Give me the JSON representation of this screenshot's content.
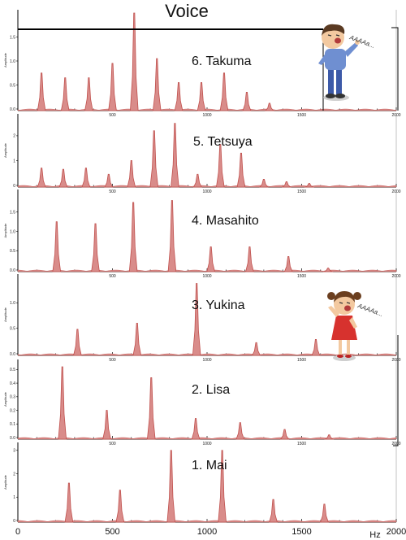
{
  "figure": {
    "title": "Voice",
    "x_unit": "Hz",
    "bottom_ticks": [
      "0",
      "500",
      "1000",
      "1500",
      "2000"
    ],
    "panel_ticks": [
      "500",
      "1000",
      "1500",
      "2000"
    ],
    "y_axis_label": "Amplitude",
    "shout_text": "AAAAa...",
    "colors": {
      "peak": "#c0504d",
      "peak_fill": "#d98c8a",
      "axis": "#000000"
    },
    "icons": [
      "boy-shouting-icon",
      "girl-shouting-icon"
    ]
  },
  "chart_data": [
    {
      "type": "line",
      "title": "6. Takuma",
      "xlabel": "",
      "ylabel": "Amplitude",
      "xlim": [
        0,
        2000
      ],
      "ylim": [
        0,
        2.0
      ],
      "yticks": [
        "0.0",
        "0.5",
        "1.0",
        "1.5"
      ],
      "series": [
        {
          "x": [
            125,
            250,
            375,
            500,
            615,
            735,
            850,
            970,
            1090,
            1210,
            1330
          ],
          "values": [
            0.75,
            0.65,
            0.65,
            0.95,
            2.0,
            1.05,
            0.55,
            0.55,
            0.75,
            0.35,
            0.12
          ]
        }
      ]
    },
    {
      "type": "line",
      "title": "5. Tetsuya",
      "xlabel": "",
      "ylabel": "Amplitude",
      "xlim": [
        0,
        2000
      ],
      "ylim": [
        0,
        2.75
      ],
      "yticks": [
        "0",
        "1",
        "2"
      ],
      "series": [
        {
          "x": [
            125,
            240,
            360,
            480,
            600,
            720,
            830,
            950,
            1070,
            1180,
            1300,
            1420,
            1540
          ],
          "values": [
            0.7,
            0.65,
            0.7,
            0.45,
            1.0,
            2.2,
            2.5,
            0.45,
            1.65,
            1.3,
            0.25,
            0.15,
            0.08
          ]
        }
      ]
    },
    {
      "type": "line",
      "title": "4. Masahito",
      "xlabel": "",
      "ylabel": "Amplitude",
      "xlim": [
        0,
        2000
      ],
      "ylim": [
        0,
        2.0
      ],
      "yticks": [
        "0.0",
        "0.5",
        "1.0",
        "1.5"
      ],
      "series": [
        {
          "x": [
            205,
            410,
            610,
            815,
            1020,
            1225,
            1430,
            1640
          ],
          "values": [
            1.25,
            1.2,
            1.75,
            1.8,
            0.6,
            0.6,
            0.35,
            0.05
          ]
        }
      ]
    },
    {
      "type": "line",
      "title": "3. Yukina",
      "xlabel": "",
      "ylabel": "Amplitude",
      "xlim": [
        0,
        2000
      ],
      "ylim": [
        0,
        1.5
      ],
      "yticks": [
        "0.0",
        "0.5",
        "1.0"
      ],
      "series": [
        {
          "x": [
            315,
            630,
            945,
            1260,
            1575
          ],
          "values": [
            0.48,
            0.6,
            1.38,
            0.22,
            0.28
          ]
        }
      ]
    },
    {
      "type": "line",
      "title": "2. Lisa",
      "xlabel": "",
      "ylabel": "Amplitude",
      "xlim": [
        0,
        2000
      ],
      "ylim": [
        0,
        0.55
      ],
      "yticks": [
        "0.0",
        "0.1",
        "0.2",
        "0.3",
        "0.4",
        "0.5"
      ],
      "series": [
        {
          "x": [
            235,
            470,
            705,
            940,
            1175,
            1410,
            1645
          ],
          "values": [
            0.52,
            0.2,
            0.44,
            0.14,
            0.11,
            0.06,
            0.02
          ]
        }
      ]
    },
    {
      "type": "line",
      "title": "1. Mai",
      "xlabel": "Hz",
      "ylabel": "Amplitude",
      "xlim": [
        0,
        2000
      ],
      "ylim": [
        0,
        3.2
      ],
      "yticks": [
        "0",
        "1",
        "2",
        "3"
      ],
      "series": [
        {
          "x": [
            270,
            540,
            810,
            1080,
            1350,
            1620
          ],
          "values": [
            1.6,
            1.3,
            3.0,
            3.0,
            0.9,
            0.7
          ]
        }
      ]
    }
  ]
}
